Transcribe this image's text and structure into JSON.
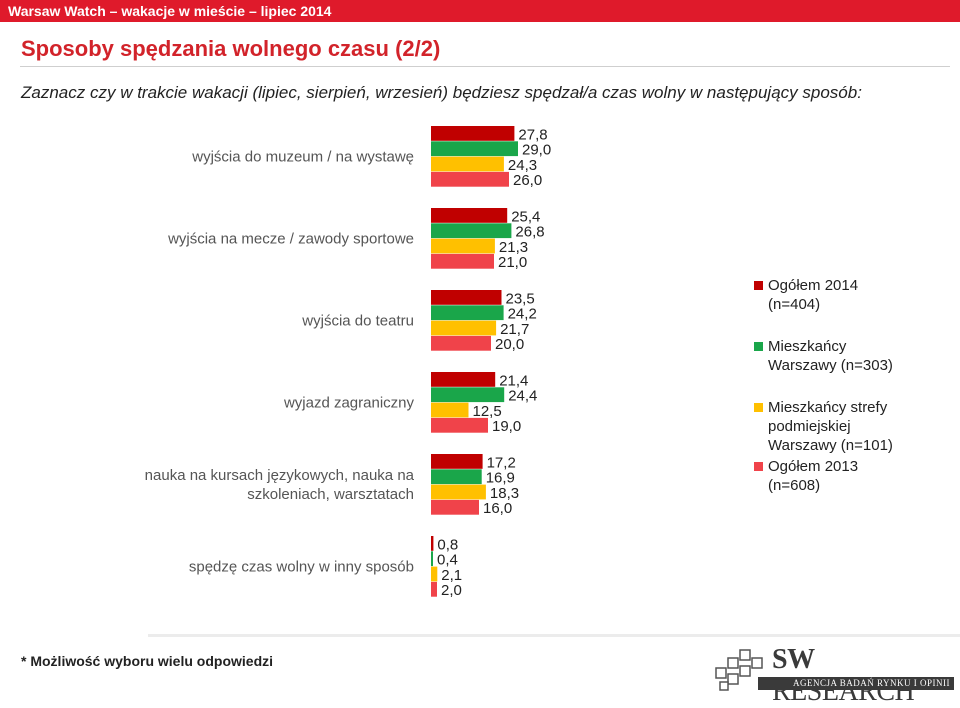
{
  "header": {
    "bar_text": "Warsaw Watch – wakacje w mieście – lipiec 2014"
  },
  "page_title": "Sposoby spędzania wolnego czasu (2/2)",
  "question": "Zaznacz czy w trakcie wakacji (lipiec, sierpień, wrzesień) będziesz spędzał/a czas wolny w następujący sposób:",
  "footnote": "* Możliwość wyboru wielu odpowiedzi",
  "logo": {
    "name_sw": "SW",
    "name_rest": "RESEARCH",
    "tagline": "AGENCJA BADAŃ RYNKU I OPINII"
  },
  "legend": [
    {
      "label": "Ogółem 2014 (n=404)",
      "lines": [
        "Ogółem 2014",
        "(n=404)"
      ],
      "color": "#c00000"
    },
    {
      "label": "Mieszkańcy Warszawy (n=303)",
      "lines": [
        "Mieszkańcy",
        "Warszawy (n=303)"
      ],
      "color": "#1aa64a"
    },
    {
      "label": "Mieszkańcy strefy podmiejskiej Warszawy (n=101)",
      "lines": [
        "Mieszkańcy strefy",
        "podmiejskiej",
        "Warszawy (n=101)"
      ],
      "color": "#ffc000"
    },
    {
      "label": "Ogółem 2013 (n=608)",
      "lines": [
        "Ogółem 2013",
        "(n=608)"
      ],
      "color": "#f0434a"
    }
  ],
  "chart_data": {
    "type": "bar",
    "orientation": "horizontal",
    "categories": [
      "wyjścia do muzeum / na wystawę",
      "wyjścia na mecze / zawody sportowe",
      "wyjścia do teatru",
      "wyjazd zagraniczny",
      "nauka na kursach językowych, nauka na szkoleniach, warsztatach",
      "spędzę czas wolny w inny sposób"
    ],
    "category_lines": [
      [
        "wyjścia do muzeum / na wystawę"
      ],
      [
        "wyjścia na mecze / zawody sportowe"
      ],
      [
        "wyjścia do teatru"
      ],
      [
        "wyjazd zagraniczny"
      ],
      [
        "nauka na kursach językowych, nauka na",
        "szkoleniach, warsztatach"
      ],
      [
        "spędzę czas wolny w inny sposób"
      ]
    ],
    "series": [
      {
        "name": "Ogółem 2014 (n=404)",
        "color": "#c00000",
        "values": [
          27.8,
          25.4,
          23.5,
          21.4,
          17.2,
          0.8
        ]
      },
      {
        "name": "Mieszkańcy Warszawy (n=303)",
        "color": "#1aa64a",
        "values": [
          29.0,
          26.8,
          24.2,
          24.4,
          16.9,
          0.4
        ]
      },
      {
        "name": "Mieszkańcy strefy podmiejskiej Warszawy (n=101)",
        "color": "#ffc000",
        "values": [
          24.3,
          21.3,
          21.7,
          12.5,
          18.3,
          2.1
        ]
      },
      {
        "name": "Ogółem 2013 (n=608)",
        "color": "#f0434a",
        "values": [
          26.0,
          21.0,
          20.0,
          19.0,
          16.0,
          2.0
        ]
      }
    ],
    "value_labels": [
      [
        "27,8",
        "25,4",
        "23,5",
        "21,4",
        "17,2",
        "0,8"
      ],
      [
        "29,0",
        "26,8",
        "24,2",
        "24,4",
        "16,9",
        "0,4"
      ],
      [
        "24,3",
        "21,3",
        "21,7",
        "12,5",
        "18,3",
        "2,1"
      ],
      [
        "26,0",
        "21,0",
        "20,0",
        "19,0",
        "16,0",
        "2,0"
      ]
    ],
    "xlim": [
      0,
      100
    ],
    "grid": false,
    "legend_position": "right"
  }
}
